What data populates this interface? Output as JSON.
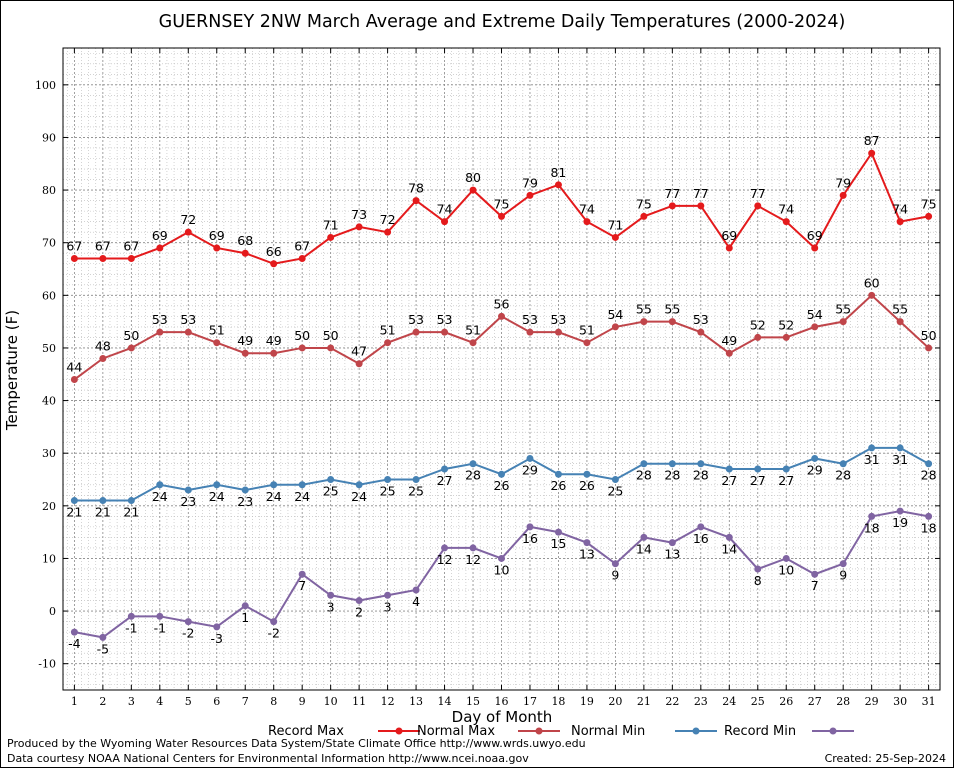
{
  "chart_data": {
    "type": "line",
    "title": "GUERNSEY 2NW March Average and Extreme Daily Temperatures (2000-2024)",
    "xlabel": "Day of Month",
    "ylabel": "Temperature (F)",
    "x": [
      1,
      2,
      3,
      4,
      5,
      6,
      7,
      8,
      9,
      10,
      11,
      12,
      13,
      14,
      15,
      16,
      17,
      18,
      19,
      20,
      21,
      22,
      23,
      24,
      25,
      26,
      27,
      28,
      29,
      30,
      31
    ],
    "xlim": [
      0.6,
      31.4
    ],
    "ylim": [
      -15,
      107
    ],
    "yticks": [
      -10,
      0,
      10,
      20,
      30,
      40,
      50,
      60,
      70,
      80,
      90,
      100
    ],
    "grid": true,
    "legend_position": "bottom",
    "series": [
      {
        "name": "Record Max",
        "color": "#e41a1c",
        "label_position": "above",
        "values": [
          67,
          67,
          67,
          69,
          72,
          69,
          68,
          66,
          67,
          71,
          73,
          72,
          78,
          74,
          80,
          75,
          79,
          81,
          74,
          71,
          75,
          77,
          77,
          69,
          77,
          74,
          69,
          79,
          87,
          74,
          75
        ]
      },
      {
        "name": "Normal Max",
        "color": "#c0454a",
        "label_position": "above",
        "values": [
          44,
          48,
          50,
          53,
          53,
          51,
          49,
          49,
          50,
          50,
          47,
          51,
          53,
          53,
          51,
          56,
          53,
          53,
          51,
          54,
          55,
          55,
          53,
          49,
          52,
          52,
          54,
          55,
          60,
          55,
          50
        ]
      },
      {
        "name": "Normal Min",
        "color": "#4682b4",
        "label_position": "below",
        "values": [
          21,
          21,
          21,
          24,
          23,
          24,
          23,
          24,
          24,
          25,
          24,
          25,
          25,
          27,
          28,
          26,
          29,
          26,
          26,
          25,
          28,
          28,
          28,
          27,
          27,
          27,
          29,
          28,
          31,
          31,
          28
        ]
      },
      {
        "name": "Record Min",
        "color": "#8064a2",
        "label_position": "below",
        "values": [
          -4,
          -5,
          -1,
          -1,
          -2,
          -3,
          1,
          -2,
          7,
          3,
          2,
          3,
          4,
          12,
          12,
          10,
          16,
          15,
          13,
          9,
          14,
          13,
          16,
          14,
          8,
          10,
          7,
          9,
          18,
          19,
          18
        ]
      }
    ]
  },
  "footer": {
    "produced_by": "Produced by the Wyoming Water Resources Data System/State Climate Office http://www.wrds.uwyo.edu",
    "data_courtesy": "Data courtesy NOAA National Centers for Environmental Information http://www.ncei.noaa.gov",
    "created": "Created:  25-Sep-2024"
  }
}
